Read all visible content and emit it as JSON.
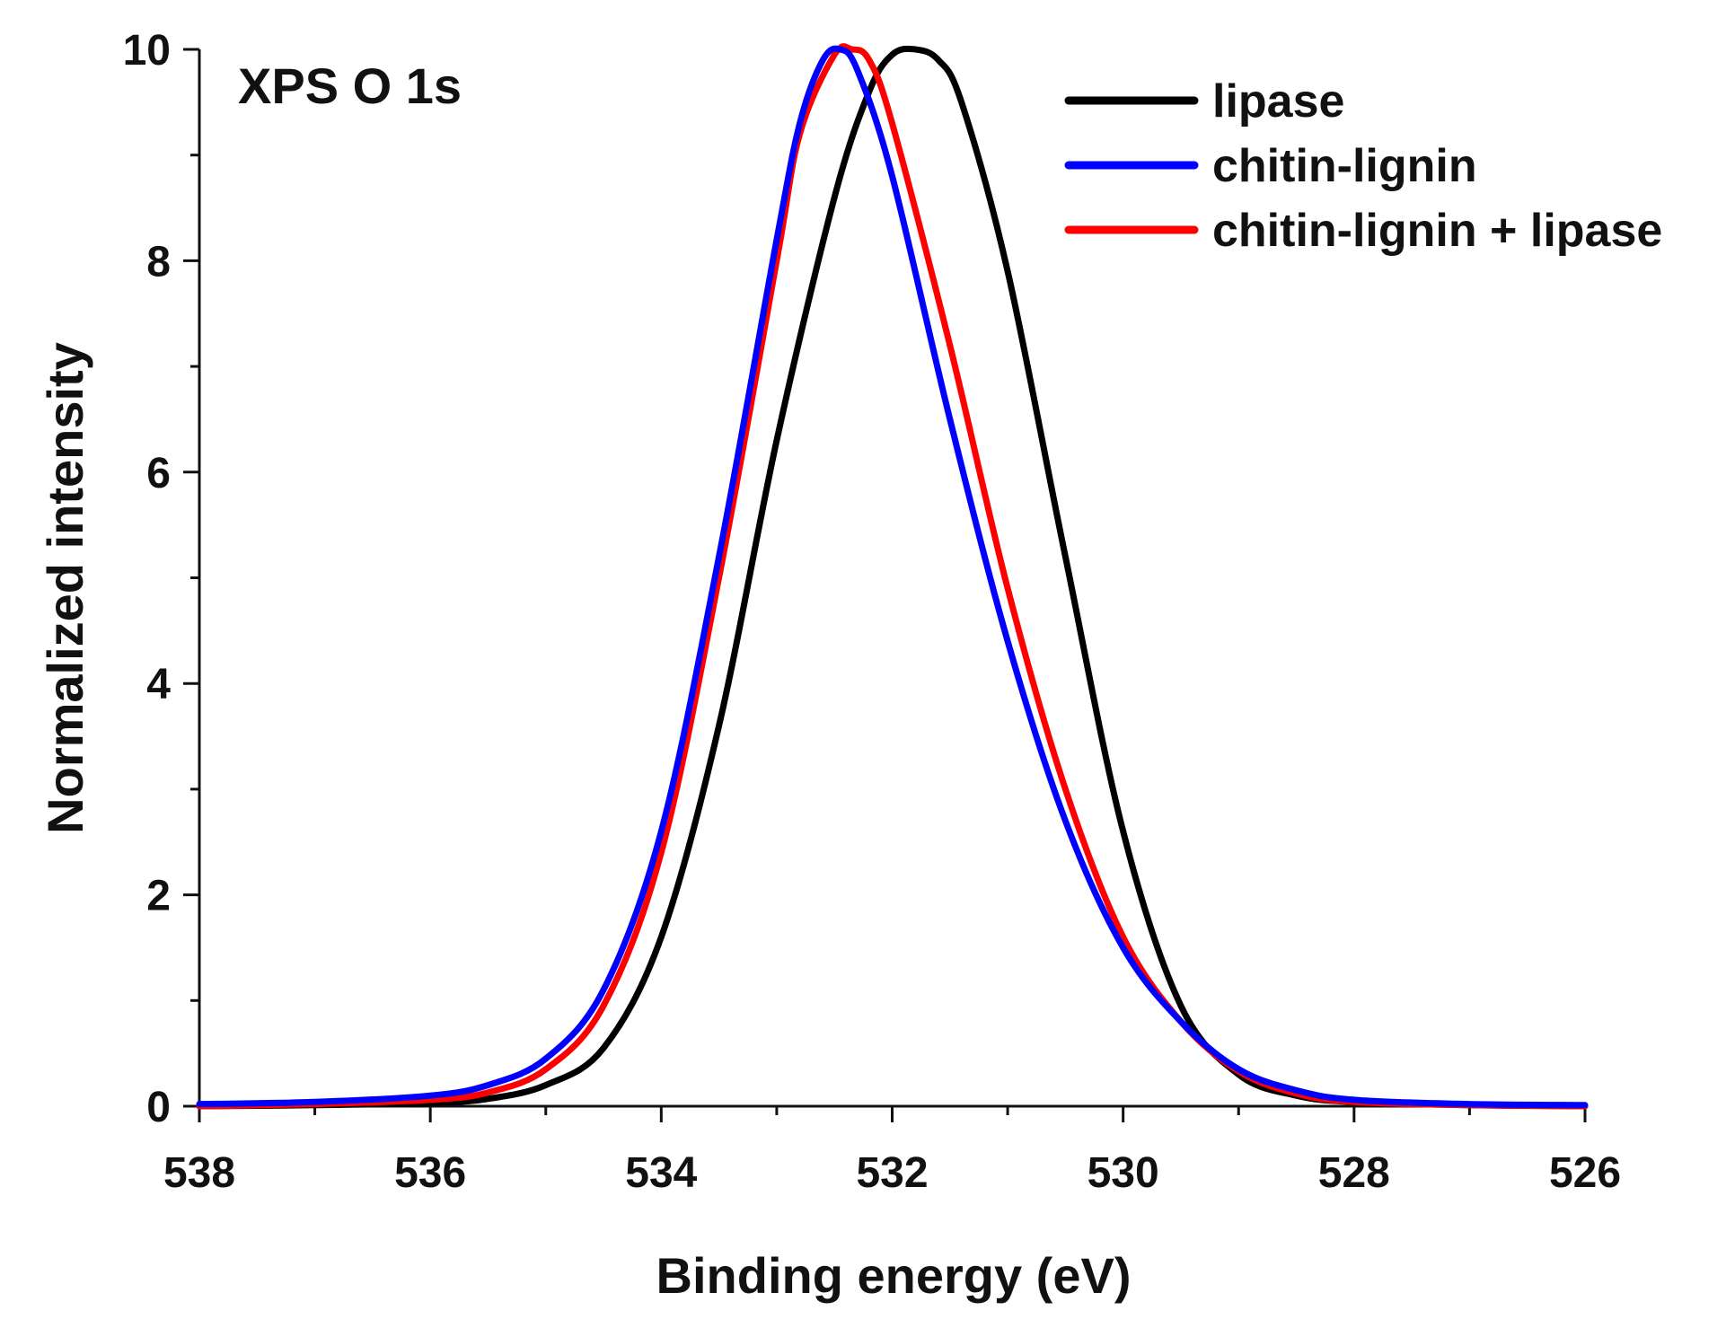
{
  "chart_data": {
    "type": "line",
    "title": "XPS O 1s",
    "xlabel": "Binding energy (eV)",
    "ylabel": "Normalized intensity",
    "xlim": [
      538,
      526
    ],
    "ylim": [
      0,
      10
    ],
    "x_ticks": [
      "538",
      "536",
      "534",
      "532",
      "530",
      "528",
      "526"
    ],
    "y_ticks": [
      "0",
      "2",
      "4",
      "6",
      "8",
      "10"
    ],
    "legend_position": "top-right",
    "grid": false,
    "series": [
      {
        "name": "lipase",
        "color": "#000000",
        "x": [
          538,
          537,
          536,
          535.5,
          535,
          534.5,
          534,
          533.5,
          533,
          532.5,
          532.2,
          532,
          531.8,
          531.6,
          531.4,
          531,
          530.5,
          530,
          529.5,
          529,
          528.5,
          528,
          527,
          526
        ],
        "y": [
          0,
          0.01,
          0.03,
          0.07,
          0.2,
          0.55,
          1.6,
          3.6,
          6.3,
          8.6,
          9.6,
          9.95,
          10,
          9.9,
          9.5,
          7.9,
          5.2,
          2.6,
          0.95,
          0.3,
          0.1,
          0.04,
          0.01,
          0
        ]
      },
      {
        "name": "chitin-lignin",
        "color": "#0000ff",
        "x": [
          538,
          537,
          536,
          535.5,
          535,
          534.5,
          534,
          533.5,
          533,
          532.8,
          532.6,
          532.45,
          532.3,
          532,
          531.5,
          531,
          530.5,
          530,
          529.5,
          529,
          528.5,
          528,
          527,
          526
        ],
        "y": [
          0.02,
          0.04,
          0.1,
          0.2,
          0.45,
          1.1,
          2.6,
          5.2,
          8.2,
          9.3,
          9.9,
          10,
          9.8,
          8.8,
          6.5,
          4.4,
          2.7,
          1.5,
          0.8,
          0.35,
          0.15,
          0.06,
          0.02,
          0.01
        ]
      },
      {
        "name": "chitin-lignin + lipase",
        "color": "#ff0000",
        "x": [
          538,
          537,
          536,
          535.5,
          535,
          534.5,
          534,
          533.5,
          533,
          532.8,
          532.5,
          532.35,
          532.2,
          532,
          531.5,
          531,
          530.5,
          530,
          529.5,
          529,
          528.5,
          528,
          527,
          526
        ],
        "y": [
          0,
          0.02,
          0.06,
          0.13,
          0.35,
          0.95,
          2.4,
          5.0,
          8.0,
          9.2,
          9.95,
          10,
          9.9,
          9.3,
          7.2,
          4.9,
          3.0,
          1.6,
          0.8,
          0.33,
          0.12,
          0.04,
          0.01,
          0
        ]
      }
    ]
  }
}
